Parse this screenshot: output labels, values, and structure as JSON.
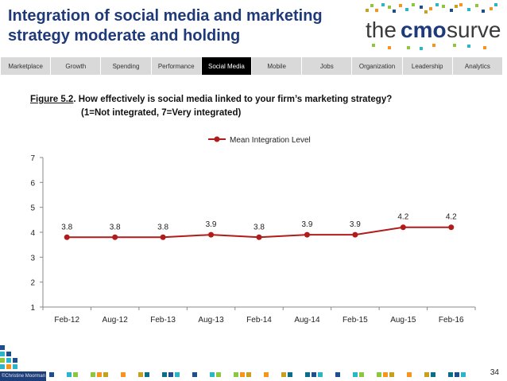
{
  "header": {
    "title_line1": "Integration of social media and marketing",
    "title_line2": "strategy moderate and holding",
    "logo": {
      "part1": "the",
      "part2": "cmo",
      "part3": "survey"
    }
  },
  "nav": {
    "tabs": [
      "Marketplace",
      "Growth",
      "Spending",
      "Performance",
      "Social Media",
      "Mobile",
      "Jobs",
      "Organization",
      "Leadership",
      "Analytics"
    ],
    "active": "Social Media"
  },
  "figure": {
    "number": "Figure 5.2",
    "question": ".  How effectively is social media linked to your firm’s marketing strategy?",
    "scale_note": "(1=Not integrated,  7=Very integrated)"
  },
  "chart_data": {
    "type": "line",
    "title": "",
    "categories": [
      "Feb-12",
      "Aug-12",
      "Feb-13",
      "Aug-13",
      "Feb-14",
      "Aug-14",
      "Feb-15",
      "Aug-15",
      "Feb-16"
    ],
    "series": [
      {
        "name": "Mean Integration Level",
        "values": [
          3.8,
          3.8,
          3.8,
          3.9,
          3.8,
          3.9,
          3.9,
          4.2,
          4.2
        ],
        "color": "#b01c1c"
      }
    ],
    "ylim": [
      1,
      7
    ],
    "yticks": [
      1,
      2,
      3,
      4,
      5,
      6,
      7
    ],
    "xlabel": "",
    "ylabel": "",
    "legend": "top-center",
    "grid": false
  },
  "footer": {
    "page_number": "34",
    "credit": "©Christine Moorman"
  },
  "colors": {
    "title": "#1f3a7a",
    "series": "#b01c1c",
    "active_tab": "#000000",
    "tab": "#d9d9d9"
  }
}
